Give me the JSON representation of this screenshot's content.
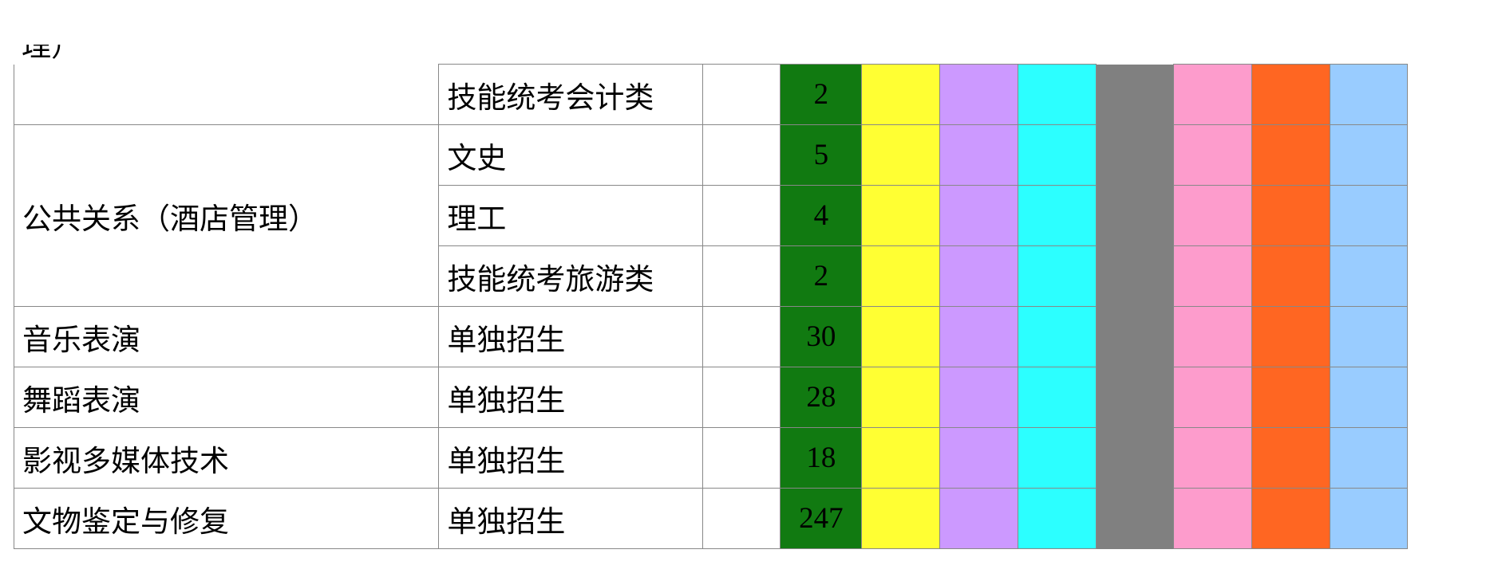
{
  "colors": {
    "count_col": "#117a11",
    "yellow": "#ffff33",
    "purple": "#cc99ff",
    "cyan": "#2cffff",
    "gray": "#808080",
    "pink": "#fd9ccc",
    "orange": "#ff6622",
    "blue": "#99ccff"
  },
  "clipped_text": "理）",
  "rows": [
    {
      "major": "",
      "type": "技能统考会计类",
      "count": "2"
    },
    {
      "major": "公共关系（酒店管理）",
      "type": "文史",
      "count": "5"
    },
    {
      "major": "",
      "type": "理工",
      "count": "4"
    },
    {
      "major": "",
      "type": "技能统考旅游类",
      "count": "2"
    },
    {
      "major": "音乐表演",
      "type": "单独招生",
      "count": "30"
    },
    {
      "major": "舞蹈表演",
      "type": "单独招生",
      "count": "28"
    },
    {
      "major": "影视多媒体技术",
      "type": "单独招生",
      "count": "18"
    },
    {
      "major": "文物鉴定与修复",
      "type": "单独招生",
      "count": "247"
    }
  ]
}
